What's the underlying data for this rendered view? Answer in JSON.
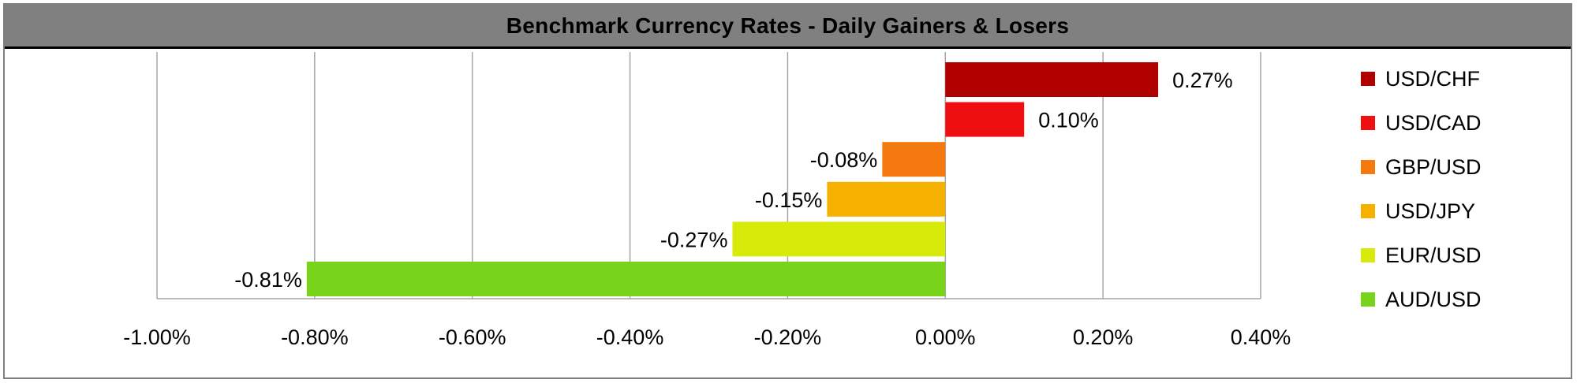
{
  "chart_data": {
    "type": "bar",
    "orientation": "horizontal",
    "title": "Benchmark Currency Rates - Daily Gainers & Losers",
    "categories": [
      "USD/CHF",
      "USD/CAD",
      "GBP/USD",
      "USD/JPY",
      "EUR/USD",
      "AUD/USD"
    ],
    "values": [
      0.27,
      0.1,
      -0.08,
      -0.15,
      -0.27,
      -0.81
    ],
    "data_labels": [
      "0.27%",
      "0.10%",
      "-0.08%",
      "-0.15%",
      "-0.27%",
      "-0.81%"
    ],
    "colors": [
      "#b00000",
      "#ee1010",
      "#f47a10",
      "#f5b000",
      "#d8ea0a",
      "#78d41a"
    ],
    "xlim": [
      -1.0,
      0.4
    ],
    "x_ticks": [
      -1.0,
      -0.8,
      -0.6,
      -0.4,
      -0.2,
      0.0,
      0.2,
      0.4
    ],
    "x_tick_labels": [
      "-1.00%",
      "-0.80%",
      "-0.60%",
      "-0.40%",
      "-0.20%",
      "0.00%",
      "0.20%",
      "0.40%"
    ],
    "xlabel": "",
    "ylabel": "",
    "grid": true,
    "legend_position": "right",
    "title_bar_color": "#808080"
  }
}
